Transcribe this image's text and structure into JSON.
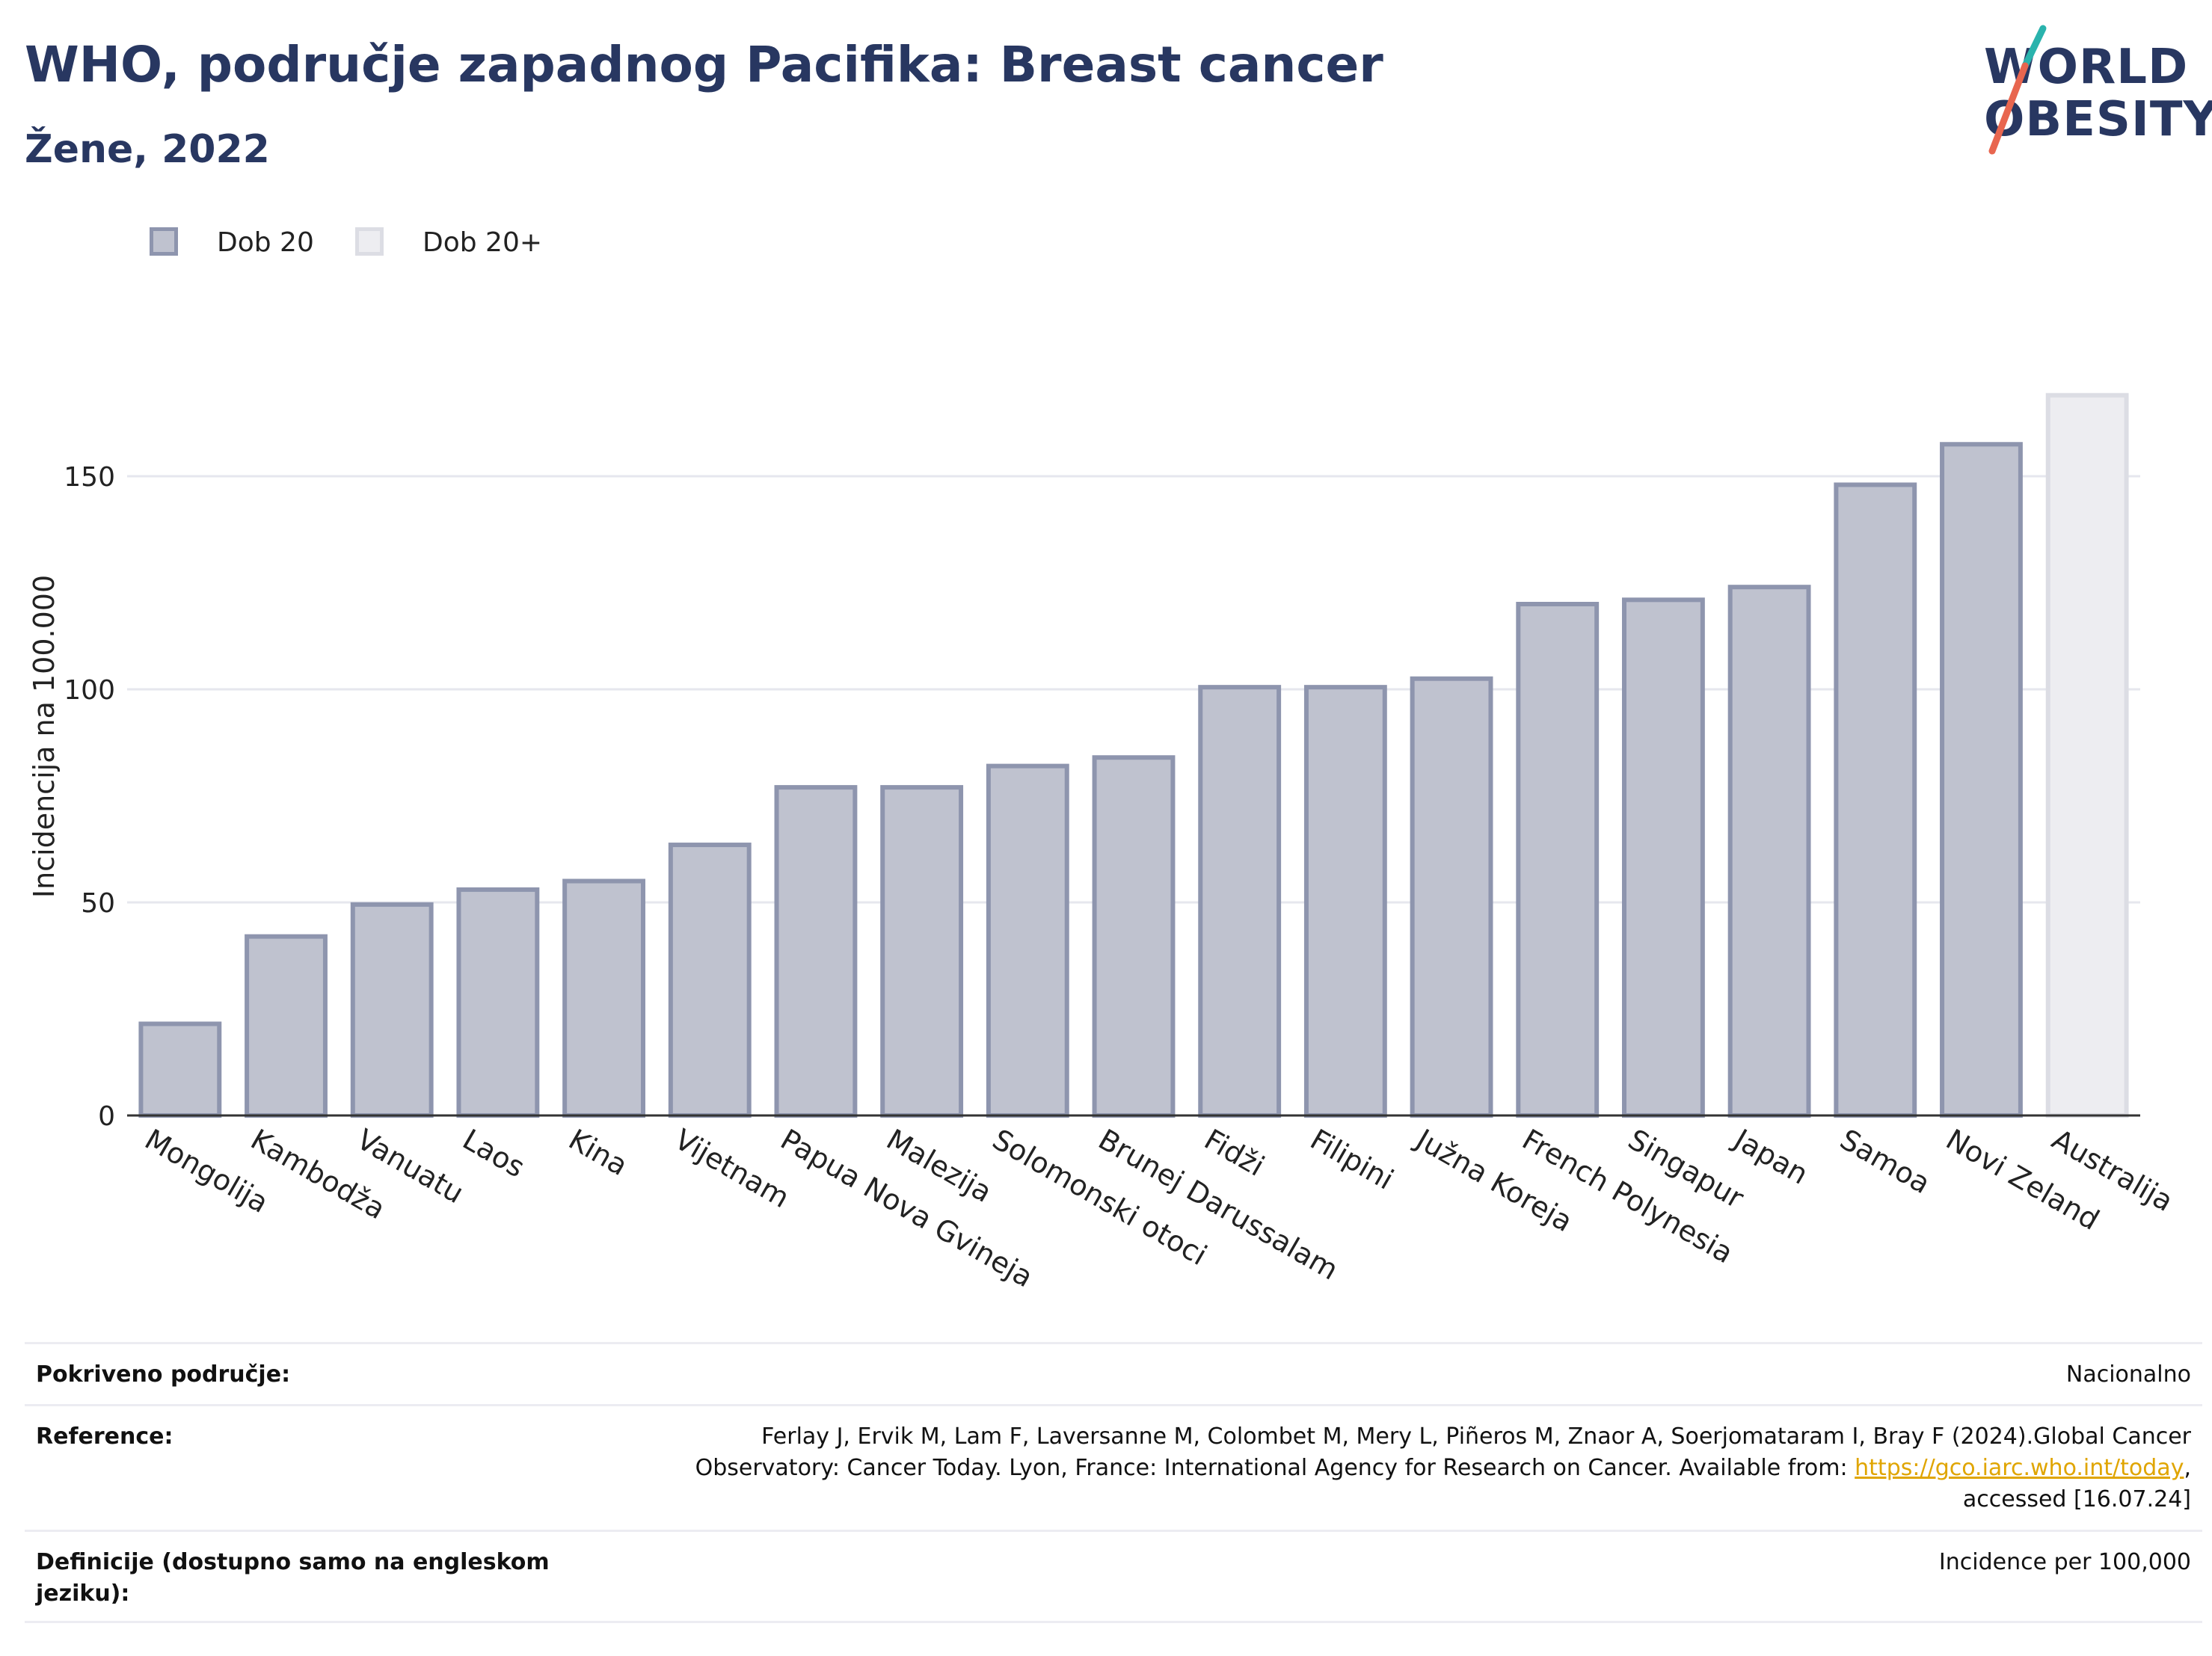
{
  "header": {
    "title": "WHO, područje zapadnog Pacifika: Breast cancer",
    "subtitle": "Žene, 2022"
  },
  "logo": {
    "line1": "WORLD",
    "line2": "OBESITY"
  },
  "legend": {
    "items": [
      {
        "label": "Dob 20",
        "color": "#bfc2cf",
        "border": "#8e95ae"
      },
      {
        "label": "Dob 20+",
        "color": "#ededf1",
        "border": "#dcdde4"
      }
    ]
  },
  "chart_data": {
    "type": "bar",
    "ylabel": "Incidencija na 100.000",
    "ylim": [
      0,
      180
    ],
    "yticks": [
      0,
      50,
      100,
      150
    ],
    "grid": true,
    "legend_position": "top-left",
    "categories": [
      "Mongolija",
      "Kambodža",
      "Vanuatu",
      "Laos",
      "Kina",
      "Vijetnam",
      "Papua Nova Gvineja",
      "Malezija",
      "Solomonski otoci",
      "Brunej Darussalam",
      "Fidži",
      "Filipini",
      "Južna Koreja",
      "French Polynesia",
      "Singapur",
      "Japan",
      "Samoa",
      "Novi Zeland",
      "Australija"
    ],
    "values": [
      21.5,
      42,
      49.5,
      53,
      55,
      63.5,
      77,
      77,
      82,
      84,
      100.5,
      100.5,
      102.5,
      120,
      121,
      124,
      148,
      157.5,
      169
    ],
    "series_of_bar": [
      "Dob 20",
      "Dob 20",
      "Dob 20",
      "Dob 20",
      "Dob 20",
      "Dob 20",
      "Dob 20",
      "Dob 20",
      "Dob 20",
      "Dob 20",
      "Dob 20",
      "Dob 20",
      "Dob 20",
      "Dob 20",
      "Dob 20",
      "Dob 20",
      "Dob 20",
      "Dob 20",
      "Dob 20+"
    ]
  },
  "footer": {
    "coverage_label": "Pokriveno područje:",
    "coverage_value": "Nacionalno",
    "reference_label": "Reference:",
    "reference_line1": "Ferlay J, Ervik M, Lam F, Laversanne M, Colombet M, Mery L, Piñeros M, Znaor A, Soerjomataram I, Bray F (2024).Global Cancer",
    "reference_line2_prefix": "Observatory: Cancer Today. Lyon, France: International Agency for Research on Cancer. Available from: ",
    "reference_link": "https://gco.iarc.who.int/today",
    "reference_line2_suffix": ",",
    "reference_line3": "accessed [16.07.24]",
    "definitions_label_line1": "Definicije (dostupno samo na engleskom",
    "definitions_label_line2": "jeziku):",
    "definitions_value": "Incidence per 100,000"
  }
}
